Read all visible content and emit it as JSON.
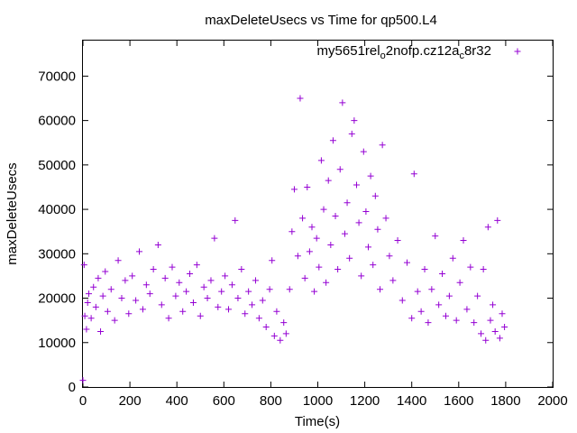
{
  "chart_data": {
    "type": "scatter",
    "title": "maxDeleteUsecs vs Time for qp500.L4",
    "xlabel": "Time(s)",
    "ylabel": "maxDeleteUsecs",
    "xlim": [
      0,
      2000
    ],
    "ylim": [
      0,
      78000
    ],
    "x_ticks": [
      "0",
      "200",
      "400",
      "600",
      "800",
      "1000",
      "1200",
      "1400",
      "1600",
      "1800",
      "2000"
    ],
    "y_ticks": [
      "0",
      "10000",
      "20000",
      "30000",
      "40000",
      "50000",
      "60000",
      "70000"
    ],
    "grid": false,
    "legend_position": "top-right",
    "legend": {
      "base": "my5651",
      "parts": [
        {
          "text": "r",
          "sub": false
        },
        {
          "text": "el",
          "sub": false
        },
        {
          "text": "o",
          "sub": true
        },
        {
          "text": "2nofp.cz12a",
          "sub": false
        },
        {
          "text": "c",
          "sub": true
        },
        {
          "text": "8r32",
          "sub": false
        }
      ]
    },
    "marker": "+",
    "color": "#9400d3",
    "series": [
      {
        "points": [
          [
            0,
            1500
          ],
          [
            5,
            27500
          ],
          [
            8,
            16000
          ],
          [
            15,
            13000
          ],
          [
            20,
            19000
          ],
          [
            25,
            21000
          ],
          [
            35,
            15500
          ],
          [
            45,
            22500
          ],
          [
            55,
            18000
          ],
          [
            65,
            24500
          ],
          [
            75,
            12500
          ],
          [
            85,
            20500
          ],
          [
            95,
            26000
          ],
          [
            105,
            17000
          ],
          [
            120,
            22000
          ],
          [
            135,
            15000
          ],
          [
            150,
            28500
          ],
          [
            165,
            20000
          ],
          [
            180,
            24000
          ],
          [
            195,
            16500
          ],
          [
            210,
            25000
          ],
          [
            225,
            19500
          ],
          [
            240,
            30500
          ],
          [
            255,
            17500
          ],
          [
            270,
            23000
          ],
          [
            285,
            21000
          ],
          [
            300,
            26500
          ],
          [
            320,
            32000
          ],
          [
            335,
            18500
          ],
          [
            350,
            24500
          ],
          [
            365,
            15500
          ],
          [
            380,
            27000
          ],
          [
            395,
            20500
          ],
          [
            410,
            23500
          ],
          [
            425,
            17000
          ],
          [
            440,
            21500
          ],
          [
            455,
            25500
          ],
          [
            470,
            19000
          ],
          [
            485,
            27500
          ],
          [
            500,
            16000
          ],
          [
            515,
            22500
          ],
          [
            530,
            20000
          ],
          [
            545,
            24000
          ],
          [
            560,
            33500
          ],
          [
            575,
            18000
          ],
          [
            590,
            21500
          ],
          [
            605,
            25000
          ],
          [
            620,
            17500
          ],
          [
            635,
            23000
          ],
          [
            648,
            37500
          ],
          [
            660,
            20000
          ],
          [
            675,
            26500
          ],
          [
            690,
            16500
          ],
          [
            705,
            21500
          ],
          [
            720,
            18500
          ],
          [
            735,
            24000
          ],
          [
            750,
            15500
          ],
          [
            765,
            19500
          ],
          [
            780,
            13500
          ],
          [
            795,
            22000
          ],
          [
            805,
            28500
          ],
          [
            815,
            11500
          ],
          [
            825,
            17000
          ],
          [
            840,
            10500
          ],
          [
            855,
            14500
          ],
          [
            865,
            12000
          ],
          [
            880,
            22000
          ],
          [
            890,
            35000
          ],
          [
            900,
            44500
          ],
          [
            915,
            29500
          ],
          [
            925,
            65000
          ],
          [
            935,
            38000
          ],
          [
            945,
            24500
          ],
          [
            955,
            45000
          ],
          [
            965,
            30500
          ],
          [
            975,
            36000
          ],
          [
            985,
            21500
          ],
          [
            995,
            33500
          ],
          [
            1005,
            27000
          ],
          [
            1015,
            51000
          ],
          [
            1025,
            40000
          ],
          [
            1035,
            23500
          ],
          [
            1045,
            46500
          ],
          [
            1055,
            32000
          ],
          [
            1065,
            55500
          ],
          [
            1075,
            38500
          ],
          [
            1085,
            26500
          ],
          [
            1095,
            49000
          ],
          [
            1105,
            64000
          ],
          [
            1115,
            34500
          ],
          [
            1125,
            41500
          ],
          [
            1135,
            29000
          ],
          [
            1145,
            57000
          ],
          [
            1155,
            60000
          ],
          [
            1165,
            45500
          ],
          [
            1175,
            37000
          ],
          [
            1185,
            25000
          ],
          [
            1195,
            53000
          ],
          [
            1205,
            39500
          ],
          [
            1215,
            31500
          ],
          [
            1225,
            47500
          ],
          [
            1235,
            27500
          ],
          [
            1245,
            43000
          ],
          [
            1255,
            35500
          ],
          [
            1265,
            22000
          ],
          [
            1275,
            54500
          ],
          [
            1290,
            38000
          ],
          [
            1305,
            29500
          ],
          [
            1320,
            24000
          ],
          [
            1340,
            33000
          ],
          [
            1360,
            19500
          ],
          [
            1380,
            28000
          ],
          [
            1400,
            15500
          ],
          [
            1410,
            48000
          ],
          [
            1425,
            21500
          ],
          [
            1440,
            17000
          ],
          [
            1455,
            26500
          ],
          [
            1470,
            14500
          ],
          [
            1485,
            22000
          ],
          [
            1500,
            34000
          ],
          [
            1515,
            18500
          ],
          [
            1530,
            25500
          ],
          [
            1545,
            16000
          ],
          [
            1560,
            20500
          ],
          [
            1575,
            29000
          ],
          [
            1590,
            15000
          ],
          [
            1605,
            23500
          ],
          [
            1620,
            33000
          ],
          [
            1635,
            17500
          ],
          [
            1650,
            27000
          ],
          [
            1665,
            14500
          ],
          [
            1680,
            20500
          ],
          [
            1695,
            12000
          ],
          [
            1705,
            26500
          ],
          [
            1715,
            10500
          ],
          [
            1725,
            36000
          ],
          [
            1735,
            15000
          ],
          [
            1745,
            18500
          ],
          [
            1755,
            12500
          ],
          [
            1765,
            37500
          ],
          [
            1775,
            11000
          ],
          [
            1785,
            16500
          ],
          [
            1795,
            13500
          ]
        ]
      }
    ]
  }
}
